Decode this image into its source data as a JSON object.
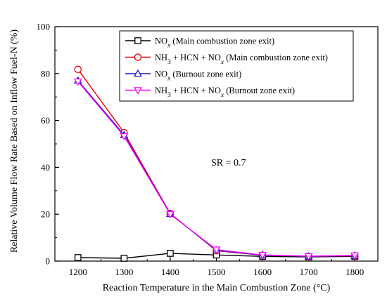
{
  "chart_data": {
    "type": "line",
    "title": "",
    "xlabel": "Reaction Temperature in the Main Combustion Zone (°C)",
    "ylabel": "Relative Volume Flow Rate Based on Inflow Fuel-N (%)",
    "x": [
      1200,
      1300,
      1400,
      1500,
      1600,
      1700,
      1800
    ],
    "xlim": [
      1150,
      1850
    ],
    "ylim": [
      0,
      100
    ],
    "xticks": [
      "1200",
      "1300",
      "1400",
      "1500",
      "1600",
      "1700",
      "1800"
    ],
    "yticks": [
      "0",
      "20",
      "40",
      "60",
      "80",
      "100"
    ],
    "grid": false,
    "legend_position": "top-right",
    "annotation": "SR = 0.7",
    "series": [
      {
        "name": "NOx (Main combustion zone exit)",
        "legend": {
          "pre": "NO",
          "sub": "x",
          "post": " (Main combustion zone exit)"
        },
        "color": "#000000",
        "marker": "square",
        "values": [
          1.5,
          1.2,
          3.3,
          2.6,
          2.0,
          1.8,
          2.0
        ]
      },
      {
        "name": "NH3 + HCN + NOx (Main combustion zone exit)",
        "legend": {
          "pre": "NH",
          "sub": "3",
          "mid": " + HCN + NO",
          "sub2": "x",
          "post": " (Main combustion zone exit)"
        },
        "color": "#e60000",
        "marker": "circle",
        "values": [
          81.8,
          54.8,
          20.3,
          4.4,
          2.5,
          2.0,
          2.2
        ]
      },
      {
        "name": "NOx (Burnout zone exit)",
        "legend": {
          "pre": "NO",
          "sub": "x",
          "post": " (Burnout zone exit)"
        },
        "color": "#1a1acc",
        "marker": "triangle-up",
        "values": [
          77.0,
          53.8,
          20.1,
          4.6,
          2.5,
          2.0,
          2.3
        ]
      },
      {
        "name": "NH3 + HCN + NOx (Burnout zone exit)",
        "legend": {
          "pre": "NH",
          "sub": "3",
          "mid": " + HCN + NO",
          "sub2": "x",
          "post": " (Burnout zone exit)"
        },
        "color": "#ff00ff",
        "marker": "triangle-down",
        "values": [
          76.6,
          53.3,
          20.0,
          4.9,
          2.6,
          2.1,
          2.4
        ]
      }
    ]
  }
}
